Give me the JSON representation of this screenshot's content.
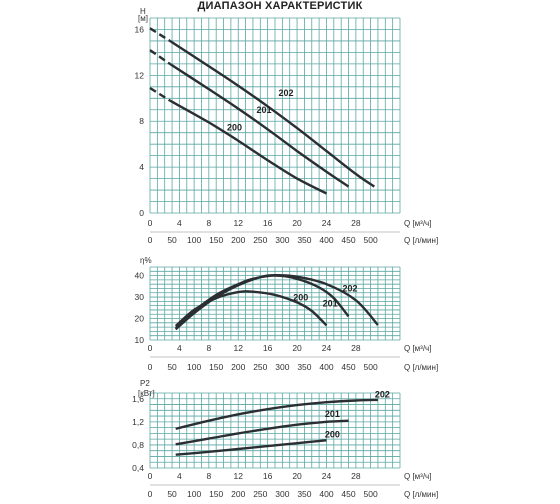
{
  "title": "ДИАПАЗОН ХАРАКТЕРИСТИК",
  "chart_data": [
    {
      "type": "line",
      "ylabel_top": "H",
      "ylabel_unit": "[м]",
      "xlabel_q": "Q [м³/ч]",
      "xlabel_l": "Q [л/мин]",
      "xlim": [
        0,
        34
      ],
      "ylim": [
        0,
        17
      ],
      "xticks": [
        0,
        4,
        8,
        12,
        16,
        20,
        24,
        28
      ],
      "x2ticks": [
        0,
        50,
        100,
        150,
        200,
        250,
        300,
        350,
        400,
        450,
        500
      ],
      "yticks": [
        0,
        4,
        8,
        12,
        16
      ],
      "grid": true,
      "series": [
        {
          "name": "200",
          "dashed": [
            [
              0,
              10.9
            ],
            [
              2.7,
              9.8
            ]
          ],
          "values": [
            [
              2.7,
              9.8
            ],
            [
              8,
              7.9
            ],
            [
              12,
              6.3
            ],
            [
              16,
              4.6
            ],
            [
              20,
              3.0
            ],
            [
              24,
              1.7
            ]
          ]
        },
        {
          "name": "201",
          "dashed": [
            [
              0,
              14.2
            ],
            [
              2.7,
              13.0
            ]
          ],
          "values": [
            [
              2.7,
              13.0
            ],
            [
              8,
              10.8
            ],
            [
              12,
              9.1
            ],
            [
              16,
              7.3
            ],
            [
              20,
              5.4
            ],
            [
              24,
              3.6
            ],
            [
              27,
              2.3
            ]
          ]
        },
        {
          "name": "202",
          "dashed": [
            [
              0,
              16.1
            ],
            [
              2.7,
              15.0
            ]
          ],
          "values": [
            [
              2.7,
              15.0
            ],
            [
              8,
              12.8
            ],
            [
              12,
              11.1
            ],
            [
              16,
              9.3
            ],
            [
              20,
              7.4
            ],
            [
              24,
              5.4
            ],
            [
              28,
              3.4
            ],
            [
              30.5,
              2.3
            ]
          ]
        }
      ],
      "labels": [
        {
          "text": "202",
          "x": 18.5,
          "y": 10.2
        },
        {
          "text": "201",
          "x": 15.5,
          "y": 8.7
        },
        {
          "text": "200",
          "x": 11.5,
          "y": 7.2
        }
      ]
    },
    {
      "type": "line",
      "ylabel_top": "η%",
      "xlabel_q": "Q [м³/ч]",
      "xlabel_l": "Q [л/мин]",
      "xlim": [
        0,
        34
      ],
      "ylim": [
        10,
        44
      ],
      "xticks": [
        0,
        4,
        8,
        12,
        16,
        20,
        24,
        28
      ],
      "x2ticks": [
        0,
        50,
        100,
        150,
        200,
        250,
        300,
        350,
        400,
        450,
        500
      ],
      "yticks": [
        10,
        20,
        30,
        40
      ],
      "grid": true,
      "series": [
        {
          "name": "200",
          "values": [
            [
              3.5,
              16.5
            ],
            [
              6,
              24
            ],
            [
              9,
              29.5
            ],
            [
              12,
              32.3
            ],
            [
              14,
              32.5
            ],
            [
              17,
              31
            ],
            [
              20,
              27.5
            ],
            [
              22,
              23.5
            ],
            [
              24,
              16.8
            ]
          ]
        },
        {
          "name": "201",
          "values": [
            [
              3.5,
              15.5
            ],
            [
              6,
              23.5
            ],
            [
              9,
              31
            ],
            [
              12,
              36
            ],
            [
              14,
              38.5
            ],
            [
              17,
              40
            ],
            [
              20,
              38.5
            ],
            [
              23,
              34.5
            ],
            [
              25,
              29.5
            ],
            [
              27,
              21
            ]
          ]
        },
        {
          "name": "202",
          "values": [
            [
              3.5,
              15
            ],
            [
              6,
              22.5
            ],
            [
              9,
              30
            ],
            [
              12,
              35.5
            ],
            [
              15,
              39.3
            ],
            [
              17,
              40.2
            ],
            [
              20,
              39.5
            ],
            [
              24,
              36
            ],
            [
              28,
              28.5
            ],
            [
              31,
              17
            ]
          ]
        }
      ],
      "labels": [
        {
          "text": "202",
          "x": 27.2,
          "y": 32.5
        },
        {
          "text": "200",
          "x": 20.5,
          "y": 28.5
        },
        {
          "text": "201",
          "x": 24.5,
          "y": 25.5
        }
      ]
    },
    {
      "type": "line",
      "ylabel_top": "P2",
      "ylabel_unit": "[кВт]",
      "xlabel_q": "Q [м³/ч]",
      "xlabel_l": "Q [л/мин]",
      "xlim": [
        0,
        34
      ],
      "ylim": [
        0.4,
        1.7
      ],
      "xticks": [
        0,
        4,
        8,
        12,
        16,
        20,
        24,
        28
      ],
      "x2ticks": [
        0,
        50,
        100,
        150,
        200,
        250,
        300,
        350,
        400,
        450,
        500
      ],
      "yticks": [
        0.4,
        0.8,
        1.2,
        1.6
      ],
      "ytick_labels": [
        "0,4",
        "0,8",
        "1,2",
        "1,6"
      ],
      "grid": true,
      "series": [
        {
          "name": "200",
          "values": [
            [
              3.5,
              0.63
            ],
            [
              8,
              0.68
            ],
            [
              12,
              0.73
            ],
            [
              16,
              0.78
            ],
            [
              20,
              0.83
            ],
            [
              24,
              0.88
            ]
          ]
        },
        {
          "name": "201",
          "values": [
            [
              3.5,
              0.81
            ],
            [
              8,
              0.91
            ],
            [
              12,
              1.0
            ],
            [
              16,
              1.08
            ],
            [
              20,
              1.15
            ],
            [
              24,
              1.2
            ],
            [
              27,
              1.22
            ]
          ]
        },
        {
          "name": "202",
          "values": [
            [
              3.5,
              1.08
            ],
            [
              8,
              1.22
            ],
            [
              12,
              1.33
            ],
            [
              16,
              1.42
            ],
            [
              20,
              1.49
            ],
            [
              24,
              1.54
            ],
            [
              28,
              1.57
            ],
            [
              31,
              1.58
            ]
          ]
        }
      ],
      "labels": [
        {
          "text": "202",
          "x": 31.6,
          "y": 1.62
        },
        {
          "text": "201",
          "x": 24.8,
          "y": 1.28
        },
        {
          "text": "200",
          "x": 24.8,
          "y": 0.93
        }
      ]
    }
  ]
}
